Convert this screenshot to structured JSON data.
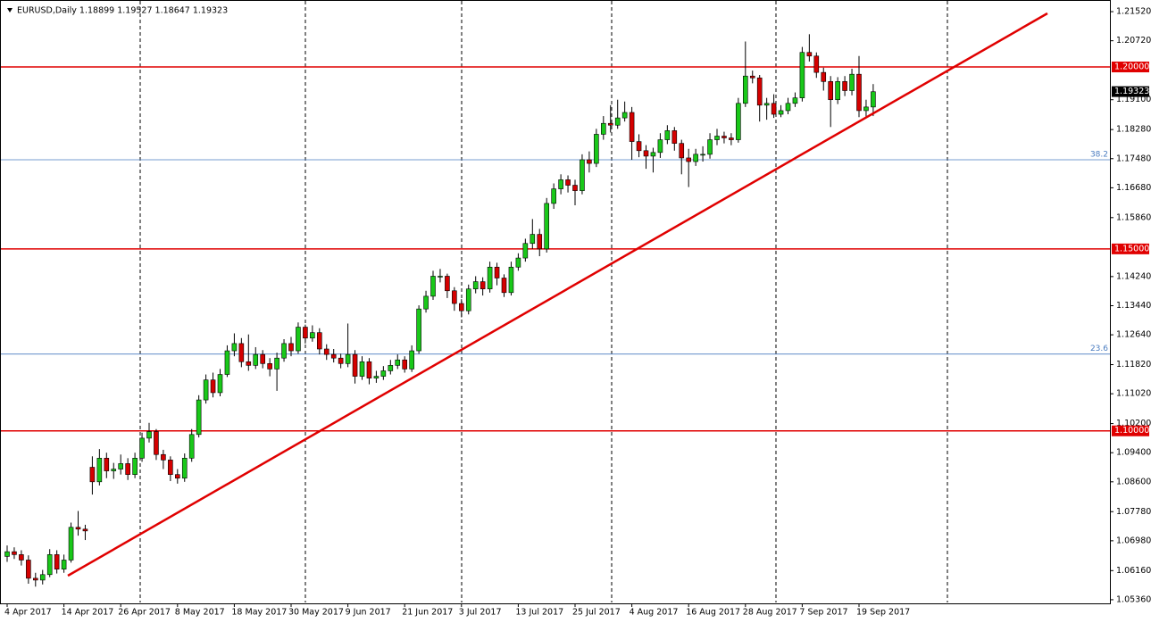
{
  "chart_data": {
    "type": "candlestick",
    "title": "EURUSD,Daily  1.18899 1.19527 1.18647 1.19323",
    "categories": [
      "4 Apr 2017",
      null,
      null,
      null,
      null,
      null,
      null,
      null,
      "14 Apr 2017",
      null,
      null,
      null,
      null,
      null,
      null,
      null,
      "26 Apr 2017",
      null,
      null,
      null,
      null,
      null,
      null,
      null,
      "8 May 2017",
      null,
      null,
      null,
      null,
      null,
      null,
      null,
      "18 May 2017",
      null,
      null,
      null,
      null,
      null,
      null,
      null,
      "30 May 2017",
      null,
      null,
      null,
      null,
      null,
      null,
      null,
      "9 Jun 2017",
      null,
      null,
      null,
      null,
      null,
      null,
      null,
      "21 Jun 2017",
      null,
      null,
      null,
      null,
      null,
      null,
      null,
      "3 Jul 2017",
      null,
      null,
      null,
      null,
      null,
      null,
      null,
      "13 Jul 2017",
      null,
      null,
      null,
      null,
      null,
      null,
      null,
      "25 Jul 2017",
      null,
      null,
      null,
      null,
      null,
      null,
      null,
      "4 Aug 2017",
      null,
      null,
      null,
      null,
      null,
      null,
      null,
      "16 Aug 2017",
      null,
      null,
      null,
      null,
      null,
      null,
      null,
      "28 Aug 2017",
      null,
      null,
      null,
      null,
      null,
      null,
      null,
      "7 Sep 2017",
      null,
      null,
      null,
      null,
      null,
      null,
      null,
      "19 Sep 2017",
      null,
      null
    ],
    "ohlc": {
      "open": [
        1.0655,
        1.0668,
        1.066,
        1.0645,
        1.0595,
        1.059,
        1.0605,
        1.066,
        1.062,
        1.0645,
        1.0735,
        1.073,
        1.09,
        1.086,
        1.0925,
        1.089,
        1.0895,
        1.091,
        1.088,
        1.0925,
        1.098,
        1.0998,
        1.0935,
        1.092,
        1.088,
        1.087,
        1.0925,
        1.099,
        1.1085,
        1.114,
        1.1105,
        1.1155,
        1.122,
        1.124,
        1.119,
        1.118,
        1.121,
        1.1185,
        1.117,
        1.12,
        1.124,
        1.122,
        1.1285,
        1.1255,
        1.127,
        1.1225,
        1.121,
        1.12,
        1.1185,
        1.121,
        1.115,
        1.119,
        1.1145,
        1.115,
        1.1165,
        1.118,
        1.1195,
        1.117,
        1.122,
        1.1335,
        1.137,
        1.1425,
        1.1425,
        1.1385,
        1.135,
        1.133,
        1.139,
        1.141,
        1.139,
        1.145,
        1.142,
        1.138,
        1.145,
        1.1475,
        1.1515,
        1.154,
        1.15,
        1.1625,
        1.1665,
        1.169,
        1.1675,
        1.166,
        1.1745,
        1.1735,
        1.1815,
        1.1845,
        1.184,
        1.186,
        1.1875,
        1.1795,
        1.177,
        1.1755,
        1.1765,
        1.18,
        1.1825,
        1.179,
        1.175,
        1.174,
        1.176,
        1.176,
        1.18,
        1.181,
        1.1805,
        1.18,
        1.19,
        1.1975,
        1.197,
        1.1895,
        1.19,
        1.187,
        1.188,
        1.19,
        1.1915,
        1.204,
        1.203,
        1.1985,
        1.196,
        1.191,
        1.196,
        1.1935,
        1.198,
        1.188,
        1.189
      ],
      "high": [
        1.0685,
        1.068,
        1.0672,
        1.0658,
        1.061,
        1.0618,
        1.0675,
        1.0672,
        1.066,
        1.0748,
        1.078,
        1.0742,
        1.093,
        1.095,
        1.094,
        1.0912,
        1.0935,
        1.0925,
        1.094,
        1.0995,
        1.1022,
        1.1005,
        1.0948,
        1.093,
        1.0895,
        1.0938,
        1.1005,
        1.1098,
        1.1155,
        1.116,
        1.117,
        1.1235,
        1.1268,
        1.1255,
        1.1265,
        1.123,
        1.1222,
        1.12,
        1.1215,
        1.1252,
        1.1258,
        1.1298,
        1.1292,
        1.129,
        1.1282,
        1.1238,
        1.1225,
        1.1212,
        1.1295,
        1.1222,
        1.1205,
        1.12,
        1.1165,
        1.1178,
        1.1195,
        1.121,
        1.1205,
        1.1235,
        1.1345,
        1.1385,
        1.144,
        1.1445,
        1.1432,
        1.1395,
        1.1362,
        1.1402,
        1.1425,
        1.1422,
        1.1465,
        1.1462,
        1.143,
        1.1465,
        1.1488,
        1.1528,
        1.1582,
        1.1555,
        1.164,
        1.168,
        1.1705,
        1.1702,
        1.169,
        1.176,
        1.1768,
        1.183,
        1.1865,
        1.1895,
        1.191,
        1.1905,
        1.189,
        1.1815,
        1.1785,
        1.1778,
        1.1818,
        1.184,
        1.1835,
        1.18,
        1.1775,
        1.1775,
        1.1782,
        1.1818,
        1.183,
        1.1822,
        1.1818,
        1.1915,
        1.207,
        1.199,
        1.1978,
        1.1915,
        1.1925,
        1.1895,
        1.1915,
        1.193,
        1.2055,
        1.209,
        1.204,
        1.1998,
        1.1975,
        1.1972,
        1.1975,
        1.1995,
        1.203,
        1.191,
        1.1953
      ],
      "low": [
        1.064,
        1.0648,
        1.063,
        1.058,
        1.0572,
        1.0578,
        1.0598,
        1.0608,
        1.061,
        1.0638,
        1.0712,
        1.07,
        1.0825,
        1.085,
        1.087,
        1.0868,
        1.088,
        1.0865,
        1.087,
        1.0915,
        1.0968,
        1.092,
        1.0895,
        1.0862,
        1.0855,
        1.086,
        1.0915,
        1.0982,
        1.1075,
        1.1092,
        1.1095,
        1.1148,
        1.1205,
        1.1175,
        1.1165,
        1.117,
        1.1172,
        1.115,
        1.111,
        1.119,
        1.1205,
        1.1212,
        1.124,
        1.1245,
        1.121,
        1.1195,
        1.1188,
        1.1172,
        1.1175,
        1.113,
        1.114,
        1.1128,
        1.1132,
        1.114,
        1.1155,
        1.117,
        1.116,
        1.1162,
        1.1212,
        1.1325,
        1.136,
        1.1408,
        1.1365,
        1.133,
        1.1312,
        1.132,
        1.1378,
        1.1372,
        1.138,
        1.14,
        1.1368,
        1.1372,
        1.144,
        1.1465,
        1.15,
        1.148,
        1.149,
        1.161,
        1.165,
        1.1655,
        1.162,
        1.165,
        1.171,
        1.1725,
        1.18,
        1.182,
        1.183,
        1.185,
        1.1745,
        1.1752,
        1.172,
        1.171,
        1.175,
        1.1788,
        1.177,
        1.1705,
        1.167,
        1.1728,
        1.174,
        1.1748,
        1.1785,
        1.179,
        1.1785,
        1.1792,
        1.189,
        1.1955,
        1.185,
        1.1855,
        1.186,
        1.1862,
        1.187,
        1.189,
        1.1905,
        1.2015,
        1.197,
        1.1935,
        1.1835,
        1.1898,
        1.192,
        1.1922,
        1.1862,
        1.186,
        1.1865
      ],
      "close": [
        1.0668,
        1.066,
        1.0645,
        1.0595,
        1.059,
        1.0605,
        1.066,
        1.062,
        1.0645,
        1.0735,
        1.073,
        1.0725,
        1.086,
        1.0925,
        1.089,
        1.0895,
        1.091,
        1.088,
        1.0925,
        1.098,
        1.0998,
        1.0935,
        1.092,
        1.088,
        1.087,
        1.0925,
        1.099,
        1.1085,
        1.114,
        1.1105,
        1.1155,
        1.122,
        1.124,
        1.119,
        1.118,
        1.121,
        1.1185,
        1.117,
        1.12,
        1.124,
        1.122,
        1.1285,
        1.1255,
        1.127,
        1.1225,
        1.121,
        1.12,
        1.1185,
        1.121,
        1.115,
        1.119,
        1.1145,
        1.115,
        1.1165,
        1.118,
        1.1195,
        1.117,
        1.122,
        1.1335,
        1.137,
        1.1425,
        1.1425,
        1.1385,
        1.135,
        1.133,
        1.139,
        1.141,
        1.139,
        1.145,
        1.142,
        1.138,
        1.145,
        1.1475,
        1.1515,
        1.154,
        1.15,
        1.1625,
        1.1665,
        1.169,
        1.1675,
        1.166,
        1.1745,
        1.1735,
        1.1815,
        1.1845,
        1.184,
        1.186,
        1.1875,
        1.1795,
        1.177,
        1.1755,
        1.1765,
        1.18,
        1.1825,
        1.179,
        1.175,
        1.174,
        1.176,
        1.176,
        1.18,
        1.181,
        1.1805,
        1.18,
        1.19,
        1.1975,
        1.197,
        1.1895,
        1.19,
        1.187,
        1.188,
        1.19,
        1.1915,
        1.204,
        1.203,
        1.1985,
        1.196,
        1.191,
        1.196,
        1.1935,
        1.198,
        1.188,
        1.189,
        1.1932
      ]
    },
    "up_color": "#19c819",
    "down_color": "#d40000",
    "ylim": [
      1.0526,
      1.2184
    ],
    "yticks": [
      {
        "value": 1.2152,
        "label": "1.21520"
      },
      {
        "value": 1.2072,
        "label": "1.20720"
      },
      {
        "value": 1.191,
        "label": "1.19100"
      },
      {
        "value": 1.1828,
        "label": "1.18280"
      },
      {
        "value": 1.1748,
        "label": "1.17480"
      },
      {
        "value": 1.1668,
        "label": "1.16680"
      },
      {
        "value": 1.1586,
        "label": "1.15860"
      },
      {
        "value": 1.1424,
        "label": "1.14240"
      },
      {
        "value": 1.1344,
        "label": "1.13440"
      },
      {
        "value": 1.1264,
        "label": "1.12640"
      },
      {
        "value": 1.1182,
        "label": "1.11820"
      },
      {
        "value": 1.1102,
        "label": "1.11020"
      },
      {
        "value": 1.102,
        "label": "1.10200"
      },
      {
        "value": 1.094,
        "label": "1.09400"
      },
      {
        "value": 1.086,
        "label": "1.08600"
      },
      {
        "value": 1.0778,
        "label": "1.07780"
      },
      {
        "value": 1.0698,
        "label": "1.06980"
      },
      {
        "value": 1.0616,
        "label": "1.06160"
      },
      {
        "value": 1.0536,
        "label": "1.05360"
      }
    ],
    "levels": [
      {
        "value": 1.2,
        "label": "1.20000"
      },
      {
        "value": 1.15,
        "label": "1.15000"
      },
      {
        "value": 1.1,
        "label": "1.10000"
      }
    ],
    "level_color": "#e00000",
    "fib_levels": [
      {
        "value": 1.1745,
        "label": "38.2"
      },
      {
        "value": 1.1211,
        "label": "23.6"
      }
    ],
    "fib_color": "#4a7cc0",
    "last_price": {
      "value": 1.19323,
      "label": "1.19323"
    }
  }
}
